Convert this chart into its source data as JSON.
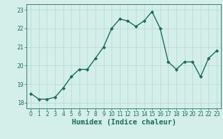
{
  "x": [
    0,
    1,
    2,
    3,
    4,
    5,
    6,
    7,
    8,
    9,
    10,
    11,
    12,
    13,
    14,
    15,
    16,
    17,
    18,
    19,
    20,
    21,
    22,
    23
  ],
  "y": [
    18.5,
    18.2,
    18.2,
    18.3,
    18.8,
    19.4,
    19.8,
    19.8,
    20.4,
    21.0,
    22.0,
    22.5,
    22.4,
    22.1,
    22.4,
    22.9,
    22.0,
    20.2,
    19.8,
    20.2,
    20.2,
    19.4,
    20.4,
    20.8
  ],
  "line_color": "#1b6b5a",
  "marker": "D",
  "marker_size": 2.2,
  "bg_color": "#d4eeea",
  "grid_color": "#b8ddd8",
  "xlabel": "Humidex (Indice chaleur)",
  "ylim": [
    17.7,
    23.3
  ],
  "xlim": [
    -0.5,
    23.5
  ],
  "yticks": [
    18,
    19,
    20,
    21,
    22,
    23
  ],
  "xticks": [
    0,
    1,
    2,
    3,
    4,
    5,
    6,
    7,
    8,
    9,
    10,
    11,
    12,
    13,
    14,
    15,
    16,
    17,
    18,
    19,
    20,
    21,
    22,
    23
  ],
  "tick_fontsize": 5.5,
  "xlabel_fontsize": 7.5,
  "linewidth": 1.0
}
